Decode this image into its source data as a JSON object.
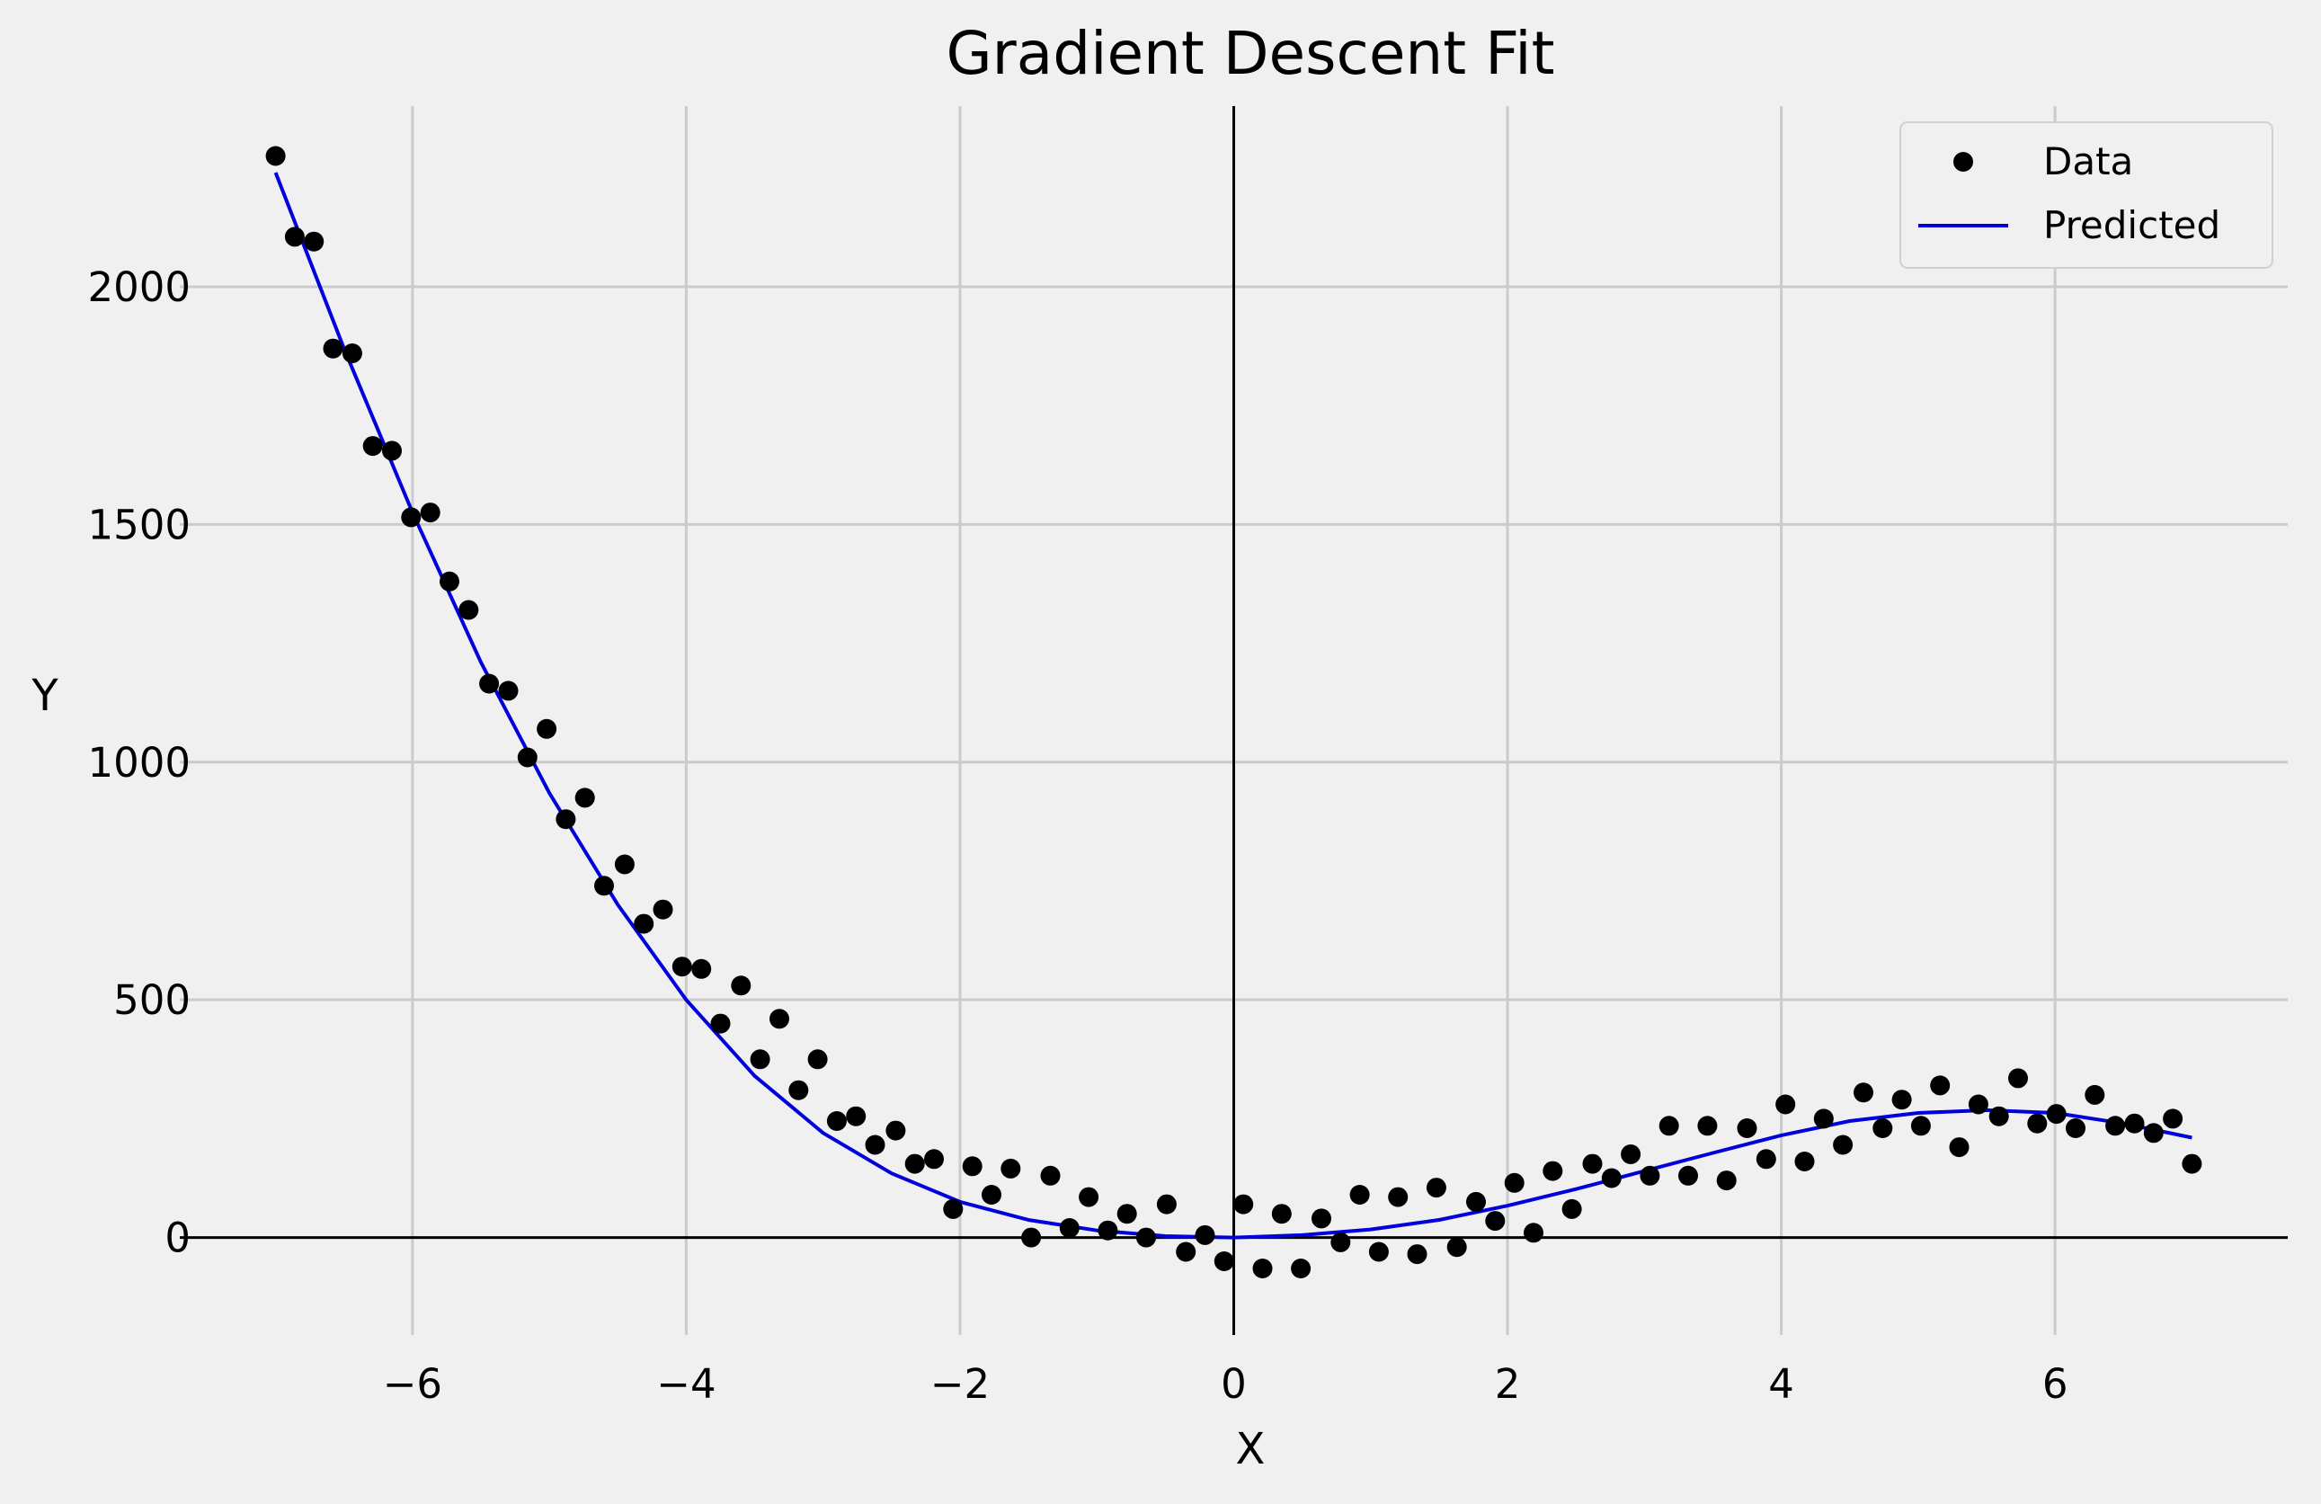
{
  "chart_data": {
    "type": "scatter",
    "title": "Gradient Descent Fit",
    "xlabel": "X",
    "ylabel": "Y",
    "xlim": [
      -7.7,
      7.7
    ],
    "ylim": [
      -205,
      2380
    ],
    "grid": true,
    "legend_position": "top-right",
    "x_ticks": [
      -6,
      -4,
      -2,
      0,
      2,
      4,
      6
    ],
    "x_tick_labels": [
      "−6",
      "−4",
      "−2",
      "0",
      "2",
      "4",
      "6"
    ],
    "y_ticks": [
      0,
      500,
      1000,
      1500,
      2000
    ],
    "y_tick_labels": [
      "0",
      "500",
      "1000",
      "1500",
      "2000"
    ],
    "colors": {
      "data": "#000000",
      "predicted": "#0000dd",
      "grid": "#cbcbcb",
      "background": "#f0f0f0"
    },
    "series": [
      {
        "name": "Data",
        "type": "scatter",
        "x": [
          -7.0,
          -6.86,
          -6.72,
          -6.58,
          -6.44,
          -6.29,
          -6.15,
          -6.01,
          -5.87,
          -5.73,
          -5.59,
          -5.44,
          -5.3,
          -5.16,
          -5.02,
          -4.88,
          -4.74,
          -4.6,
          -4.45,
          -4.31,
          -4.17,
          -4.03,
          -3.89,
          -3.75,
          -3.6,
          -3.46,
          -3.32,
          -3.18,
          -3.04,
          -2.9,
          -2.76,
          -2.62,
          -2.47,
          -2.33,
          -2.19,
          -2.05,
          -1.91,
          -1.77,
          -1.63,
          -1.48,
          -1.34,
          -1.2,
          -1.06,
          -0.92,
          -0.78,
          -0.64,
          -0.49,
          -0.35,
          -0.21,
          -0.07,
          0.07,
          0.21,
          0.35,
          0.49,
          0.64,
          0.78,
          0.92,
          1.06,
          1.2,
          1.34,
          1.48,
          1.63,
          1.77,
          1.91,
          2.05,
          2.19,
          2.33,
          2.47,
          2.62,
          2.76,
          2.9,
          3.04,
          3.18,
          3.32,
          3.46,
          3.6,
          3.75,
          3.89,
          4.03,
          4.17,
          4.31,
          4.45,
          4.6,
          4.74,
          4.88,
          5.02,
          5.16,
          5.3,
          5.44,
          5.59,
          5.73,
          5.87,
          6.01,
          6.15,
          6.29,
          6.44,
          6.58,
          6.72,
          6.86,
          7.0
        ],
        "y": [
          2275,
          2105,
          2095,
          1870,
          1860,
          1665,
          1655,
          1515,
          1525,
          1380,
          1320,
          1165,
          1150,
          1010,
          1070,
          880,
          925,
          740,
          785,
          660,
          690,
          570,
          565,
          450,
          530,
          375,
          460,
          310,
          375,
          245,
          255,
          195,
          225,
          155,
          165,
          60,
          150,
          90,
          145,
          0,
          130,
          20,
          85,
          15,
          50,
          0,
          70,
          -30,
          5,
          -50,
          70,
          -65,
          50,
          -65,
          40,
          -10,
          90,
          -30,
          85,
          -35,
          105,
          -20,
          75,
          35,
          115,
          10,
          140,
          60,
          155,
          125,
          175,
          130,
          235,
          130,
          235,
          120,
          230,
          165,
          280,
          160,
          250,
          195,
          305,
          230,
          290,
          235,
          320,
          190,
          280,
          255,
          335,
          240,
          260,
          230,
          300,
          235,
          240,
          220,
          250,
          155
        ]
      },
      {
        "name": "Predicted",
        "type": "line",
        "x": [
          -7.0,
          -6.5,
          -6.0,
          -5.5,
          -5.0,
          -4.5,
          -4.0,
          -3.5,
          -3.0,
          -2.5,
          -2.0,
          -1.5,
          -1.0,
          -0.5,
          0.0,
          0.5,
          1.0,
          1.5,
          2.0,
          2.5,
          3.0,
          3.5,
          4.0,
          4.5,
          5.0,
          5.5,
          6.0,
          6.5,
          7.0
        ],
        "y": [
          2240,
          1870,
          1525,
          1210,
          935,
          700,
          500,
          340,
          220,
          135,
          75,
          37,
          15,
          3,
          0,
          5,
          17,
          37,
          67,
          102,
          140,
          178,
          215,
          245,
          262,
          268,
          262,
          240,
          210
        ]
      }
    ]
  }
}
